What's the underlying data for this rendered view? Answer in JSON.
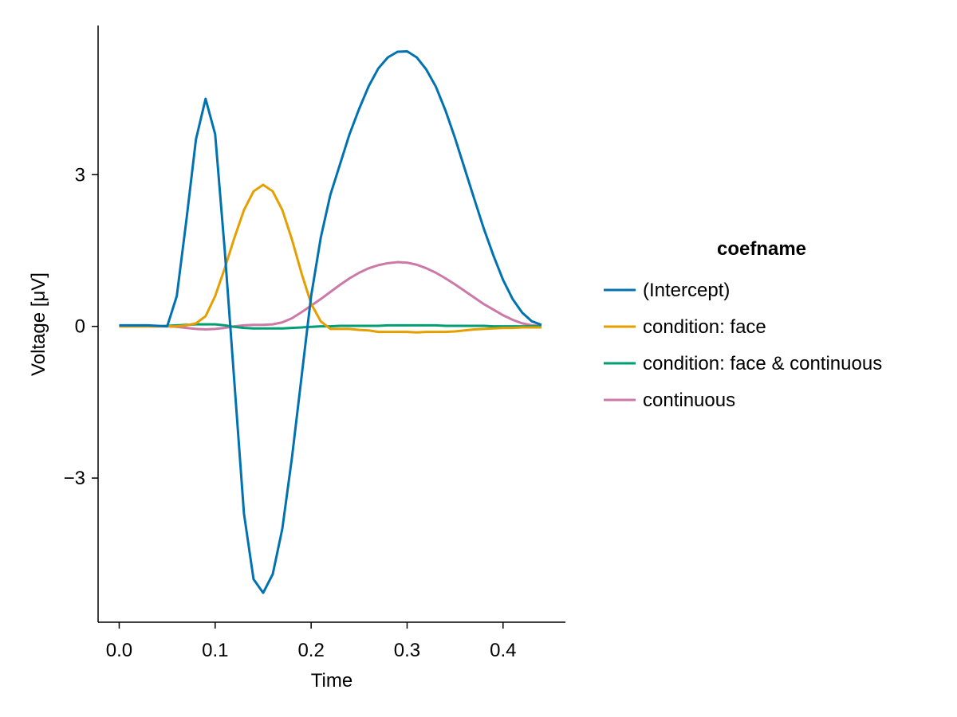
{
  "chart_data": {
    "type": "line",
    "xlabel": "Time",
    "ylabel": "Voltage [μV]",
    "xlim": [
      -0.022,
      0.465
    ],
    "ylim": [
      -5.85,
      5.95
    ],
    "xticks": [
      0.0,
      0.1,
      0.2,
      0.3,
      0.4
    ],
    "xtick_labels": [
      "0.0",
      "0.1",
      "0.2",
      "0.3",
      "0.4"
    ],
    "yticks": [
      -3,
      0,
      3
    ],
    "ytick_labels": [
      "−3",
      "0",
      "3"
    ],
    "grid": false,
    "legend": {
      "title": "coefname",
      "position": "right"
    },
    "x": [
      0.0,
      0.01,
      0.02,
      0.03,
      0.04,
      0.05,
      0.06,
      0.07,
      0.08,
      0.09,
      0.1,
      0.11,
      0.12,
      0.13,
      0.14,
      0.15,
      0.16,
      0.17,
      0.18,
      0.19,
      0.2,
      0.21,
      0.22,
      0.23,
      0.24,
      0.25,
      0.26,
      0.27,
      0.28,
      0.29,
      0.3,
      0.31,
      0.32,
      0.33,
      0.34,
      0.35,
      0.36,
      0.37,
      0.38,
      0.39,
      0.4,
      0.41,
      0.42,
      0.43,
      0.44
    ],
    "series": [
      {
        "name": "(Intercept)",
        "color": "#0072b2",
        "values": [
          0.02,
          0.02,
          0.02,
          0.02,
          0.01,
          0.0,
          0.6,
          2.1,
          3.7,
          4.5,
          3.8,
          1.5,
          -1.1,
          -3.7,
          -5.0,
          -5.27,
          -4.9,
          -4.0,
          -2.6,
          -1.0,
          0.6,
          1.75,
          2.6,
          3.2,
          3.8,
          4.3,
          4.75,
          5.1,
          5.32,
          5.43,
          5.44,
          5.32,
          5.08,
          4.74,
          4.27,
          3.72,
          3.12,
          2.52,
          1.93,
          1.4,
          0.92,
          0.54,
          0.27,
          0.1,
          0.03
        ]
      },
      {
        "name": "condition: face",
        "color": "#e69f00",
        "values": [
          0.0,
          0.0,
          0.0,
          0.0,
          0.0,
          0.0,
          0.0,
          0.02,
          0.06,
          0.2,
          0.6,
          1.15,
          1.75,
          2.3,
          2.67,
          2.8,
          2.67,
          2.3,
          1.72,
          1.05,
          0.45,
          0.1,
          -0.05,
          -0.05,
          -0.05,
          -0.07,
          -0.08,
          -0.11,
          -0.11,
          -0.11,
          -0.11,
          -0.12,
          -0.11,
          -0.11,
          -0.11,
          -0.1,
          -0.08,
          -0.06,
          -0.05,
          -0.04,
          -0.03,
          -0.03,
          -0.02,
          -0.02,
          -0.02
        ]
      },
      {
        "name": "condition: face & continuous",
        "color": "#009e73",
        "values": [
          0.0,
          0.0,
          0.0,
          0.0,
          0.0,
          0.01,
          0.02,
          0.03,
          0.04,
          0.04,
          0.04,
          0.02,
          -0.01,
          -0.03,
          -0.04,
          -0.04,
          -0.04,
          -0.04,
          -0.03,
          -0.02,
          -0.01,
          0.0,
          0.0,
          0.01,
          0.01,
          0.01,
          0.01,
          0.01,
          0.02,
          0.02,
          0.02,
          0.02,
          0.02,
          0.02,
          0.01,
          0.01,
          0.01,
          0.01,
          0.01,
          0.0,
          0.0,
          0.0,
          0.0,
          0.0,
          0.0
        ]
      },
      {
        "name": "continuous",
        "color": "#cc79a7",
        "values": [
          0.0,
          0.0,
          0.0,
          0.0,
          0.0,
          0.0,
          -0.01,
          -0.03,
          -0.05,
          -0.06,
          -0.05,
          -0.03,
          0.0,
          0.02,
          0.03,
          0.03,
          0.04,
          0.08,
          0.16,
          0.28,
          0.41,
          0.54,
          0.68,
          0.82,
          0.95,
          1.06,
          1.15,
          1.21,
          1.25,
          1.27,
          1.26,
          1.22,
          1.15,
          1.06,
          0.95,
          0.83,
          0.7,
          0.57,
          0.44,
          0.33,
          0.22,
          0.13,
          0.06,
          0.02,
          0.01
        ]
      }
    ]
  }
}
